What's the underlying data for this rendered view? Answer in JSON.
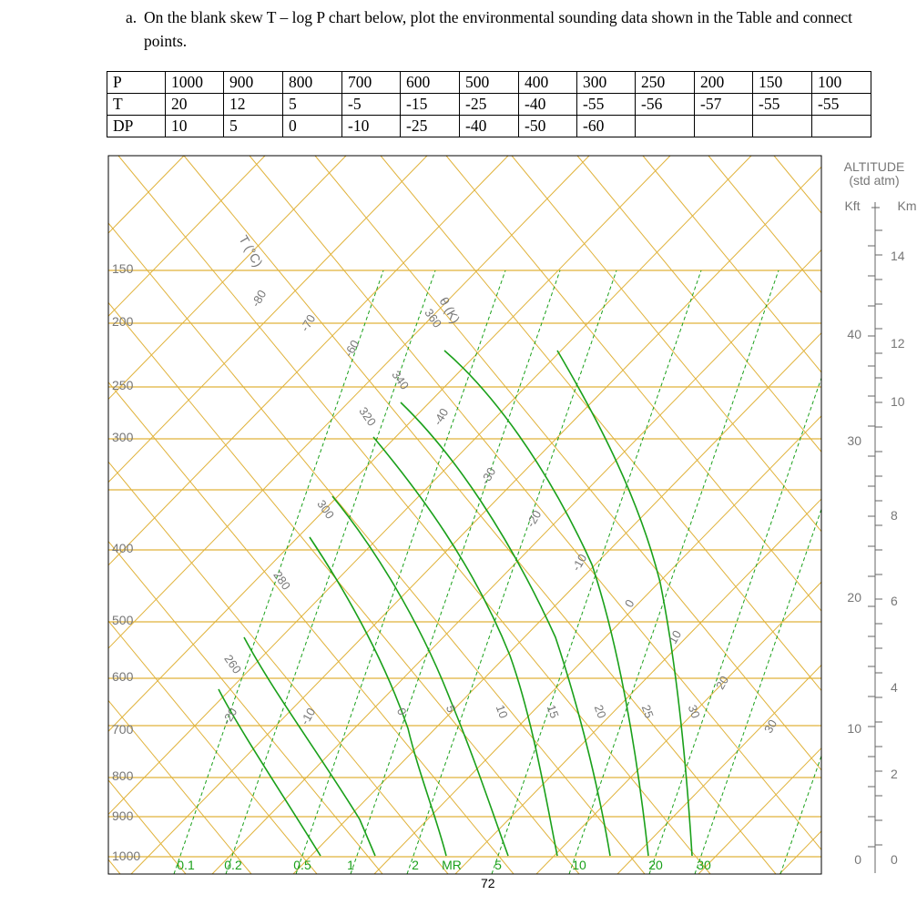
{
  "question": {
    "label": "a.",
    "text": "On the blank skew T – log P chart below, plot the environmental sounding data shown in the Table and connect points."
  },
  "table": {
    "rows": [
      [
        "P",
        "1000",
        "900",
        "800",
        "700",
        "600",
        "500",
        "400",
        "300",
        "250",
        "200",
        "150",
        "100"
      ],
      [
        "T",
        "20",
        "12",
        "5",
        "-5",
        "-15",
        "-25",
        "-40",
        "-55",
        "-56",
        "-57",
        "-55",
        "-55"
      ],
      [
        "DP",
        "10",
        "5",
        "0",
        "-10",
        "-25",
        "-40",
        "-50",
        "-60",
        "",
        "",
        "",
        ""
      ]
    ]
  },
  "chart": {
    "pressure_labels": [
      "150",
      "200",
      "250",
      "300",
      "400",
      "500",
      "600",
      "700",
      "800",
      "900",
      "1000"
    ],
    "temp_axis_title": "T (°C)",
    "temp_labels": [
      "-80",
      "-70",
      "-60",
      "-40",
      "-30",
      "-20",
      "-10",
      "0",
      "10",
      "20",
      "30",
      "-20",
      "-10"
    ],
    "theta_axis_title": "θ (K)",
    "theta_labels": [
      "360",
      "340",
      "320",
      "300",
      "280",
      "260"
    ],
    "moist_labels": [
      "0",
      "5",
      "10",
      "15",
      "20",
      "25",
      "30"
    ],
    "mr_title": "MR",
    "mr_labels": [
      "0.1",
      "0.2",
      "0.5",
      "1",
      "2",
      "5",
      "10",
      "20",
      "30"
    ],
    "altitude": {
      "title": "ALTITUDE",
      "subtitle": "(std atm)",
      "kft_title": "Kft",
      "km_title": "Km",
      "kft_labels": [
        "40",
        "30",
        "20",
        "10",
        "0"
      ],
      "km_labels": [
        "14",
        "12",
        "10",
        "8",
        "6",
        "4",
        "2",
        "0"
      ]
    },
    "colors": {
      "isobar": "#e0b23a",
      "isotherm": "#e0b23a",
      "dry_adiabat": "#e0b23a",
      "moist_adiabat": "#1aa01a",
      "mixing_ratio": "#1aa01a",
      "label": "#777777"
    }
  },
  "page_number": "72"
}
